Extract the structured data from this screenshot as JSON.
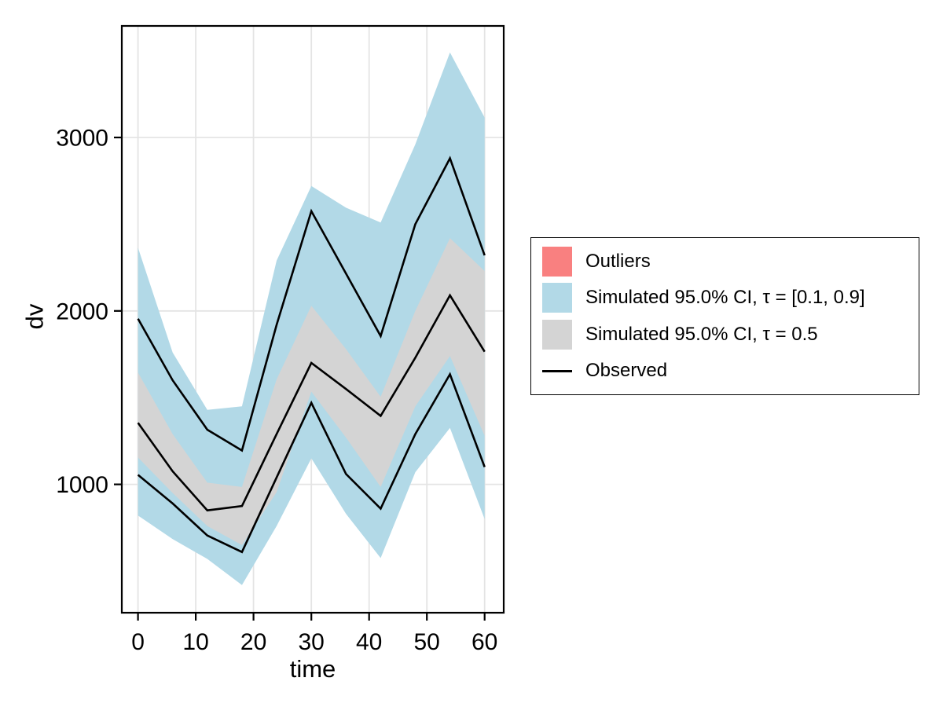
{
  "chart_data": {
    "type": "line",
    "title": "",
    "xlabel": "time",
    "ylabel": "dv",
    "grid": true,
    "legend_position": "right-outside",
    "xlim": [
      -2.8,
      63.3
    ],
    "ylim": [
      260,
      3643
    ],
    "x_tick_values": [
      0,
      10,
      20,
      30,
      40,
      50,
      60
    ],
    "x_tick_labels": [
      "0",
      "10",
      "20",
      "30",
      "40",
      "50",
      "60"
    ],
    "y_tick_values": [
      1000,
      2000,
      3000
    ],
    "y_tick_labels": [
      "1000",
      "2000",
      "3000"
    ],
    "x": [
      0,
      6,
      12,
      18,
      24,
      30,
      36,
      42,
      48,
      54,
      60
    ],
    "bands": [
      {
        "name": "Simulated 95.0% CI, τ = [0.1, 0.9]",
        "color": "#b2d9e7",
        "upper": [
          2365,
          1760,
          1430,
          1450,
          2290,
          2720,
          2595,
          2510,
          2960,
          3490,
          3115
        ],
        "lower": [
          820,
          685,
          570,
          420,
          760,
          1150,
          830,
          575,
          1070,
          1325,
          800
        ]
      },
      {
        "name": "Simulated 95.0% CI, τ = 0.5",
        "color": "#d4d4d4",
        "upper": [
          1645,
          1290,
          1010,
          985,
          1605,
          2030,
          1780,
          1505,
          2000,
          2420,
          2230
        ],
        "lower": [
          1155,
          950,
          760,
          650,
          955,
          1535,
          1270,
          985,
          1450,
          1740,
          1280
        ]
      }
    ],
    "lines": [
      {
        "name": "Observed upper quantile",
        "color": "#000000",
        "values": [
          1955,
          1600,
          1315,
          1195,
          1920,
          2575,
          2215,
          1855,
          2500,
          2880,
          2320
        ]
      },
      {
        "name": "Observed median",
        "color": "#000000",
        "values": [
          1355,
          1075,
          850,
          875,
          1290,
          1700,
          1550,
          1395,
          1730,
          2090,
          1765
        ]
      },
      {
        "name": "Observed lower quantile",
        "color": "#000000",
        "values": [
          1055,
          890,
          705,
          610,
          1040,
          1470,
          1060,
          860,
          1290,
          1635,
          1100
        ]
      }
    ],
    "legend": {
      "entries": [
        {
          "label": "Outliers",
          "type": "patch",
          "color": "#f98080"
        },
        {
          "label": "Simulated 95.0% CI, τ = [0.1, 0.9]",
          "type": "patch",
          "color": "#b2d9e7"
        },
        {
          "label": "Simulated 95.0% CI, τ = 0.5",
          "type": "patch",
          "color": "#d4d4d4"
        },
        {
          "label": "Observed",
          "type": "line",
          "color": "#000000"
        }
      ]
    },
    "style_colors": {
      "gridline": "#e4e4e4",
      "spine": "#000000",
      "background": "#ffffff"
    }
  }
}
